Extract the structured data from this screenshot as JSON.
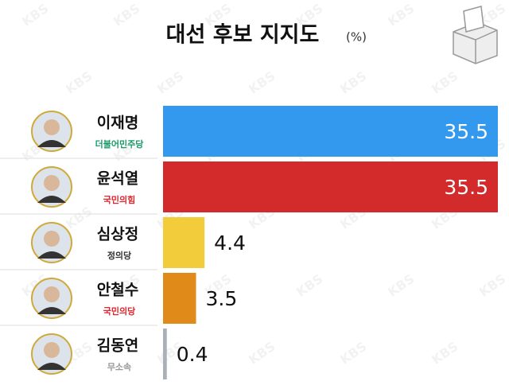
{
  "chart_data": {
    "type": "bar",
    "orientation": "horizontal",
    "title": "대선 후보 지지도",
    "unit": "(%)",
    "watermark": "KBS",
    "categories": [
      "이재명",
      "윤석열",
      "심상정",
      "안철수",
      "김동연"
    ],
    "parties": [
      "더불어민주당",
      "국민의힘",
      "정의당",
      "국민의당",
      "무소속"
    ],
    "party_colors": [
      "#1a9a6a",
      "#e0242c",
      "#333333",
      "#e0242c",
      "#999999"
    ],
    "values": [
      35.5,
      35.5,
      4.4,
      3.5,
      0.4
    ],
    "colors": [
      "#3399ee",
      "#d32b2b",
      "#f2cc3a",
      "#e08a1a",
      "#aab0b8"
    ]
  }
}
